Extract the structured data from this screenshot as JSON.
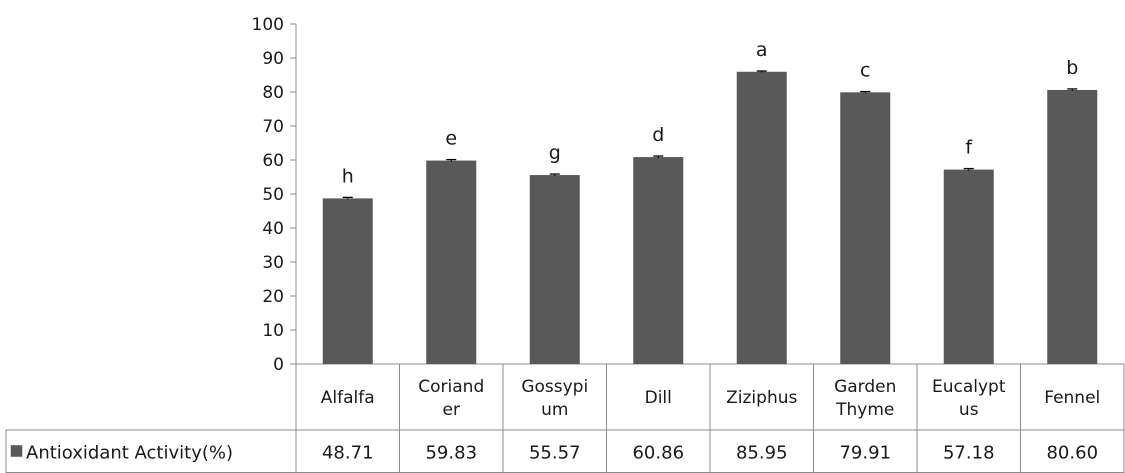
{
  "chart_data": {
    "type": "bar",
    "categories": [
      [
        "Alfalfa"
      ],
      [
        "Coriand",
        "er"
      ],
      [
        "Gossypi",
        "um"
      ],
      [
        "Dill"
      ],
      [
        "Ziziphus"
      ],
      [
        "Garden",
        "Thyme"
      ],
      [
        "Eucalypt",
        "us"
      ],
      [
        "Fennel"
      ]
    ],
    "series": [
      {
        "name": "Antioxidant Activity(%)",
        "values": [
          48.71,
          59.83,
          55.57,
          60.86,
          85.95,
          79.91,
          57.18,
          80.6
        ],
        "value_labels": [
          "48.71",
          "59.83",
          "55.57",
          "60.86",
          "85.95",
          "79.91",
          "57.18",
          "80.60"
        ],
        "error": [
          0.3,
          0.3,
          0.3,
          0.3,
          0.2,
          0.2,
          0.3,
          0.3
        ],
        "significance_letters": [
          "h",
          "e",
          "g",
          "d",
          "a",
          "c",
          "f",
          "b"
        ],
        "color": "#595959"
      }
    ],
    "yticks": [
      "0",
      "10",
      "20",
      "30",
      "40",
      "50",
      "60",
      "70",
      "80",
      "90",
      "100"
    ],
    "ylim": [
      0,
      100
    ],
    "grid": false,
    "legend": "data-table-left",
    "title": "",
    "xlabel": "",
    "ylabel": ""
  }
}
